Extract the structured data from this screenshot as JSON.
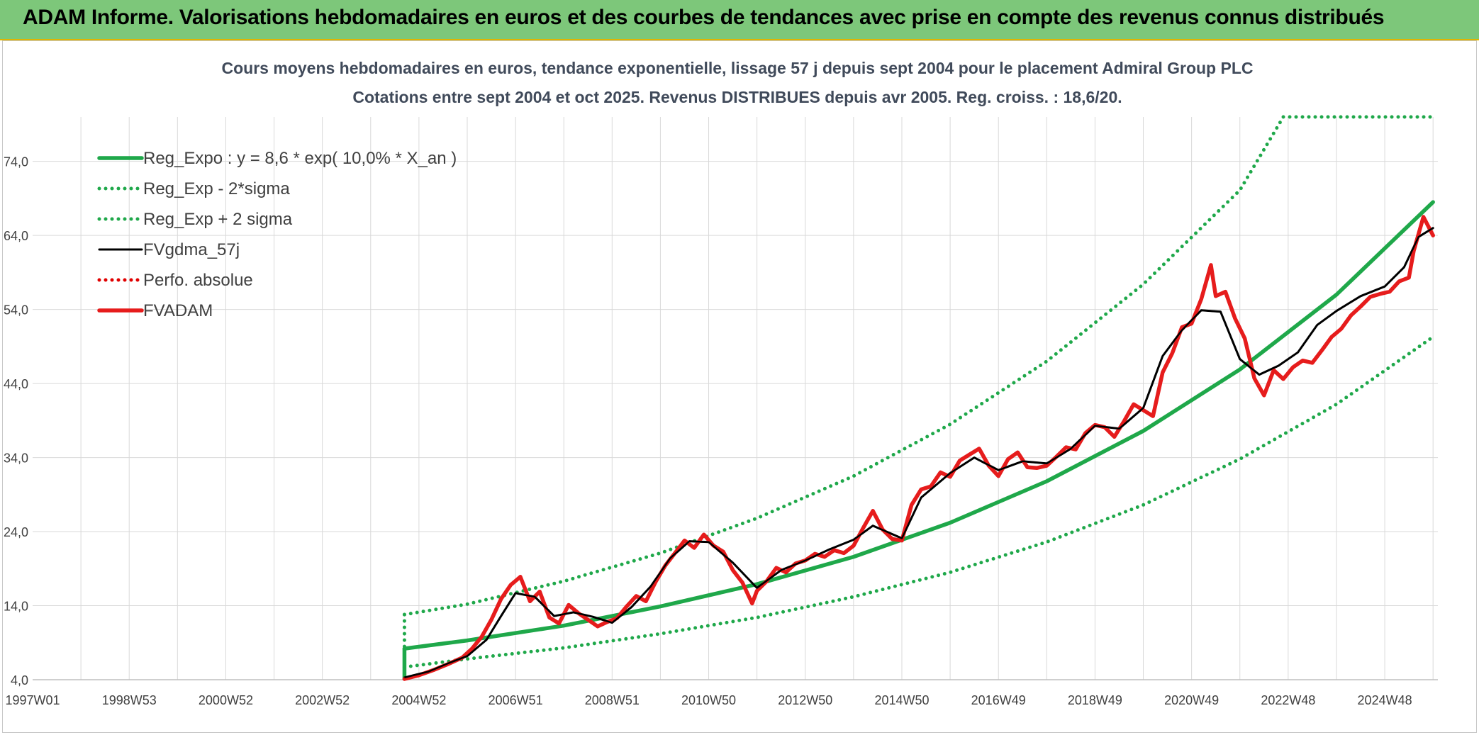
{
  "page": {
    "banner_title": "ADAM Informe. Valorisations hebdomadaires en euros et des courbes de tendances avec prise en compte des revenus connus distribués"
  },
  "chart_data": {
    "type": "line",
    "title": "Cours moyens hebdomadaires en euros, tendance exponentielle, lissage 57 j depuis sept 2004 pour le placement Admiral Group PLC",
    "subtitle": "Cotations entre sept 2004 et oct 2025. Revenus DISTRIBUES depuis avr 2005. Reg. croiss. : 18,6/20.",
    "xlabel": "",
    "ylabel": "",
    "ylim": [
      4,
      80
    ],
    "yticks": [
      "4,0",
      "14,0",
      "24,0",
      "34,0",
      "44,0",
      "54,0",
      "64,0",
      "74,0"
    ],
    "xlim": [
      1997.0,
      2026.1
    ],
    "xticks": [
      {
        "label": "1997W01",
        "x": 1997.0
      },
      {
        "label": "1998W53",
        "x": 1999.0
      },
      {
        "label": "2000W52",
        "x": 2001.0
      },
      {
        "label": "2002W52",
        "x": 2003.0
      },
      {
        "label": "2004W52",
        "x": 2005.0
      },
      {
        "label": "2006W51",
        "x": 2007.0
      },
      {
        "label": "2008W51",
        "x": 2009.0
      },
      {
        "label": "2010W50",
        "x": 2011.0
      },
      {
        "label": "2012W50",
        "x": 2013.0
      },
      {
        "label": "2014W50",
        "x": 2015.0
      },
      {
        "label": "2016W49",
        "x": 2017.0
      },
      {
        "label": "2018W49",
        "x": 2019.0
      },
      {
        "label": "2020W49",
        "x": 2021.0
      },
      {
        "label": "2022W48",
        "x": 2023.0
      },
      {
        "label": "2024W48",
        "x": 2025.0
      }
    ],
    "grid": true,
    "legend_position": "top-left",
    "series": [
      {
        "name": "Reg_Expo : y = 8,6 * exp( 10,0% *  X_an )",
        "color": "#1fa84a",
        "style": "solid",
        "x": [
          2004.7,
          2006,
          2008,
          2010,
          2012,
          2014,
          2016,
          2018,
          2020,
          2022,
          2024,
          2026.0
        ],
        "y": [
          8.2,
          9.3,
          11.3,
          13.9,
          16.9,
          20.6,
          25.2,
          30.8,
          37.6,
          45.9,
          56.0,
          68.5
        ]
      },
      {
        "name": "Reg_Exp - 2*sigma",
        "color": "#1fa84a",
        "style": "dotted",
        "x": [
          2004.7,
          2006,
          2008,
          2010,
          2012,
          2014,
          2016,
          2018,
          2020,
          2022,
          2024,
          2026.0
        ],
        "y": [
          5.7,
          6.8,
          8.3,
          10.2,
          12.4,
          15.2,
          18.5,
          22.6,
          27.6,
          33.8,
          41.2,
          50.3
        ]
      },
      {
        "name": "Reg_Exp + 2 sigma",
        "color": "#1fa84a",
        "style": "dotted",
        "x": [
          2004.7,
          2006,
          2008,
          2010,
          2012,
          2014,
          2016,
          2018,
          2020,
          2022,
          2022.9,
          2026.0
        ],
        "y": [
          12.8,
          14.2,
          17.3,
          21.1,
          25.8,
          31.5,
          38.5,
          47.0,
          57.4,
          70.1,
          80.0,
          80.0
        ]
      },
      {
        "name": "FVgdma_57j",
        "color": "#000000",
        "style": "solid",
        "x": [
          2004.7,
          2005.2,
          2005.6,
          2006.0,
          2006.4,
          2006.7,
          2007.0,
          2007.4,
          2007.8,
          2008.2,
          2008.6,
          2009.0,
          2009.4,
          2009.8,
          2010.2,
          2010.6,
          2011.0,
          2011.5,
          2012.0,
          2012.5,
          2013.0,
          2013.5,
          2014.0,
          2014.4,
          2015.0,
          2015.4,
          2016.0,
          2016.5,
          2017.0,
          2017.5,
          2018.0,
          2018.5,
          2019.0,
          2019.5,
          2020.0,
          2020.4,
          2020.8,
          2021.2,
          2021.6,
          2022.0,
          2022.4,
          2022.8,
          2023.2,
          2023.6,
          2024.0,
          2024.5,
          2025.0,
          2025.4,
          2025.7,
          2026.0
        ],
        "y": [
          4.3,
          5.1,
          6.2,
          7.2,
          9.4,
          12.6,
          15.7,
          15.2,
          12.6,
          13.1,
          12.5,
          11.7,
          13.8,
          16.6,
          20.4,
          22.7,
          22.6,
          19.8,
          16.4,
          18.8,
          20.1,
          21.6,
          22.9,
          24.8,
          23.1,
          28.6,
          31.9,
          34.0,
          32.3,
          33.5,
          33.2,
          35.2,
          38.3,
          37.9,
          40.7,
          47.7,
          51.2,
          53.9,
          53.7,
          47.3,
          45.2,
          46.4,
          48.2,
          51.9,
          53.8,
          55.8,
          57.1,
          59.7,
          63.8,
          65.0
        ]
      },
      {
        "name": "Perfo. absolue",
        "color": "#e00000",
        "style": "dotted",
        "x": [],
        "y": []
      },
      {
        "name": "FVADAM",
        "color": "#e61c1c",
        "style": "solid",
        "x": [
          2004.7,
          2005.0,
          2005.3,
          2005.6,
          2005.9,
          2006.1,
          2006.3,
          2006.5,
          2006.7,
          2006.9,
          2007.1,
          2007.3,
          2007.5,
          2007.7,
          2007.9,
          2008.1,
          2008.3,
          2008.5,
          2008.7,
          2008.9,
          2009.1,
          2009.3,
          2009.5,
          2009.7,
          2009.9,
          2010.1,
          2010.3,
          2010.5,
          2010.7,
          2010.9,
          2011.1,
          2011.3,
          2011.5,
          2011.7,
          2011.9,
          2012.0,
          2012.2,
          2012.4,
          2012.6,
          2012.8,
          2013.0,
          2013.2,
          2013.4,
          2013.6,
          2013.8,
          2014.0,
          2014.2,
          2014.4,
          2014.6,
          2014.8,
          2015.0,
          2015.2,
          2015.4,
          2015.6,
          2015.8,
          2016.0,
          2016.2,
          2016.4,
          2016.6,
          2016.8,
          2017.0,
          2017.2,
          2017.4,
          2017.6,
          2017.8,
          2018.0,
          2018.2,
          2018.4,
          2018.6,
          2018.8,
          2019.0,
          2019.2,
          2019.4,
          2019.6,
          2019.8,
          2020.0,
          2020.2,
          2020.4,
          2020.6,
          2020.8,
          2021.0,
          2021.2,
          2021.4,
          2021.5,
          2021.7,
          2021.9,
          2022.1,
          2022.3,
          2022.5,
          2022.7,
          2022.9,
          2023.1,
          2023.3,
          2023.5,
          2023.7,
          2023.9,
          2024.1,
          2024.3,
          2024.5,
          2024.7,
          2024.9,
          2025.1,
          2025.3,
          2025.5,
          2025.6,
          2025.8,
          2026.0
        ],
        "y": [
          4.1,
          4.6,
          5.3,
          6.1,
          7.0,
          8.2,
          9.8,
          12.1,
          14.9,
          16.8,
          17.9,
          14.6,
          15.9,
          12.4,
          11.6,
          14.1,
          13.0,
          12.1,
          11.2,
          11.8,
          12.3,
          13.9,
          15.3,
          14.6,
          17.2,
          19.4,
          21.1,
          22.8,
          21.8,
          23.6,
          22.1,
          21.3,
          18.8,
          17.1,
          14.3,
          16.0,
          17.3,
          19.1,
          18.5,
          19.7,
          20.1,
          21.0,
          20.6,
          21.5,
          21.1,
          22.1,
          24.5,
          26.8,
          24.3,
          23.0,
          22.8,
          27.6,
          29.7,
          30.1,
          32.0,
          31.4,
          33.6,
          34.4,
          35.2,
          32.9,
          31.5,
          33.8,
          34.7,
          32.7,
          32.6,
          32.9,
          34.1,
          35.4,
          35.1,
          37.3,
          38.4,
          38.1,
          36.8,
          38.9,
          41.2,
          40.4,
          39.6,
          45.5,
          48.1,
          51.6,
          52.1,
          55.4,
          60.0,
          55.8,
          56.4,
          52.8,
          50.1,
          44.7,
          42.4,
          45.8,
          44.6,
          46.2,
          47.1,
          46.8,
          48.5,
          50.3,
          51.4,
          53.2,
          54.4,
          55.7,
          56.1,
          56.4,
          57.8,
          58.3,
          61.9,
          66.5,
          64.0
        ]
      }
    ]
  }
}
